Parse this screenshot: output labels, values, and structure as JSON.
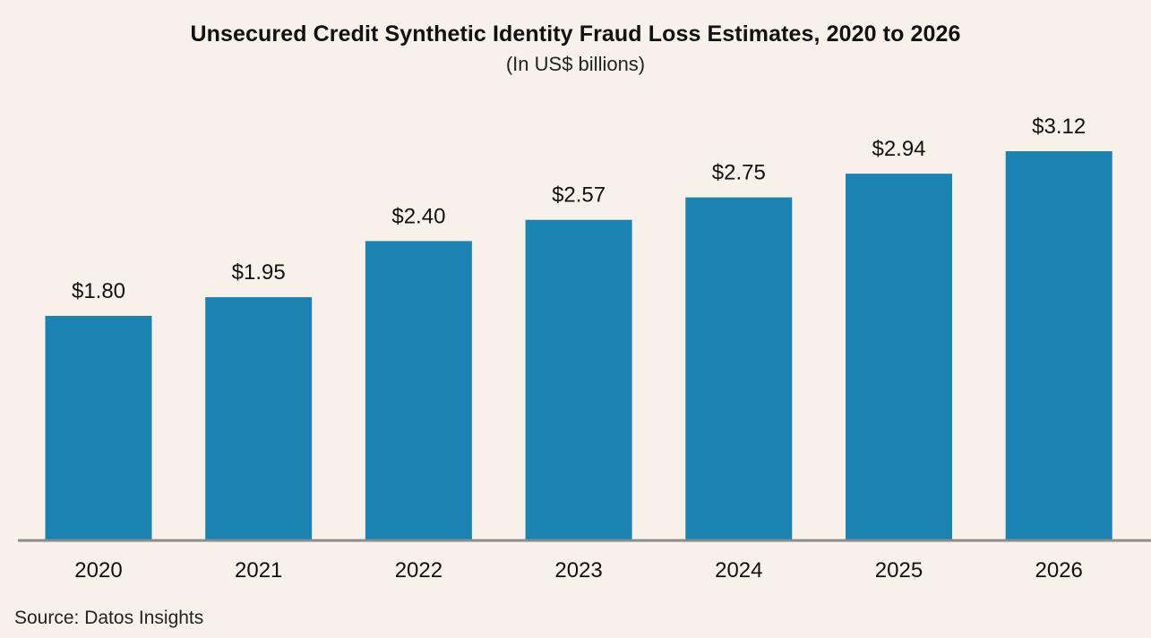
{
  "chart_data": {
    "type": "bar",
    "title": "Unsecured Credit Synthetic Identity Fraud Loss Estimates, 2020 to 2026",
    "subtitle": "(In US$ billions)",
    "categories": [
      "2020",
      "2021",
      "2022",
      "2023",
      "2024",
      "2025",
      "2026"
    ],
    "values": [
      1.8,
      1.95,
      2.4,
      2.57,
      2.75,
      2.94,
      3.12
    ],
    "value_labels": [
      "$1.80",
      "$1.95",
      "$2.40",
      "$2.57",
      "$2.75",
      "$2.94",
      "$3.12"
    ],
    "xlabel": "",
    "ylabel": "",
    "ylim": [
      0,
      3.12
    ],
    "grid": false,
    "legend": "none",
    "colors": {
      "bar": "#1b83b2",
      "axis": "#8c8c8c",
      "background": "#f8f1ea"
    }
  },
  "source": "Source: Datos Insights"
}
